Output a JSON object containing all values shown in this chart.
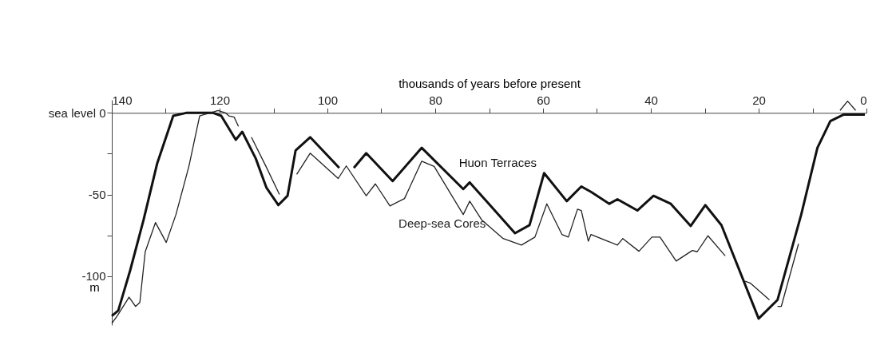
{
  "chart_data": {
    "type": "line",
    "xlabel": "thousands of years before present",
    "ylabel": "m",
    "xlim": [
      140,
      0
    ],
    "ylim": [
      -130,
      8
    ],
    "xticks": [
      140,
      {
        "value": 130,
        "label": null
      },
      120,
      {
        "value": 110,
        "label": null
      },
      100,
      {
        "value": 90,
        "label": null
      },
      80,
      {
        "value": 70,
        "label": null
      },
      60,
      {
        "value": 50,
        "label": null
      },
      40,
      {
        "value": 30,
        "label": null
      },
      20,
      {
        "value": 10,
        "label": null
      },
      0
    ],
    "yticks": [
      {
        "value": 0,
        "label": "sea level 0"
      },
      {
        "value": -25,
        "label": null
      },
      -50,
      {
        "value": -75,
        "label": null
      },
      -100
    ],
    "grid": false,
    "marker": "none",
    "line_style": "solid",
    "series": [
      {
        "name": "Huon Terraces",
        "color": "#111111",
        "x": [
          140.0,
          138.8,
          136.6,
          134.1,
          131.6,
          128.6,
          126.2,
          121.2,
          119.7,
          117.0,
          115.8,
          113.3,
          111.3,
          109.1,
          107.4,
          105.9,
          103.2,
          97.8,
          96.5,
          95.1,
          92.8,
          87.9,
          82.5,
          74.8,
          73.6,
          65.2,
          62.5,
          59.8,
          55.6,
          52.9,
          51.1,
          47.7,
          46.2,
          42.5,
          39.5,
          36.3,
          32.6,
          29.9,
          26.9,
          20.0,
          16.5,
          12.1,
          9.1,
          6.7,
          4.2,
          0.3
        ],
        "values": [
          -124.4,
          -121.1,
          -96.6,
          -65.5,
          -31.2,
          -1.8,
          0,
          0,
          -1.8,
          -16.5,
          -11.6,
          -27.9,
          -45.9,
          -56.5,
          -50.8,
          -23,
          -14.9,
          -33.7,
          null,
          -33.7,
          -24.7,
          -41.8,
          -21.4,
          -46.7,
          -42.6,
          -73.7,
          -68.8,
          -36.9,
          -54.1,
          -45.1,
          -48.4,
          -55.7,
          -52.9,
          -59.8,
          -50.8,
          -55.7,
          -69.3,
          -56.5,
          -68.8,
          -126,
          -114.6,
          -62.3,
          -21.4,
          -5,
          -1,
          -1
        ]
      },
      {
        "name": "Deep-sea Cores",
        "color": "#222222",
        "x": [
          140.0,
          139.0,
          136.8,
          135.6,
          134.8,
          133.8,
          131.9,
          129.9,
          128.1,
          125.7,
          123.7,
          121.7,
          120.3,
          118.9,
          118.3,
          117.3,
          116.5,
          115.3,
          114.1,
          111.4,
          108.9,
          107.3,
          105.7,
          103.2,
          98.0,
          96.5,
          92.8,
          91.1,
          88.4,
          85.7,
          82.5,
          80.2,
          74.8,
          73.6,
          71.4,
          67.4,
          64.0,
          61.5,
          59.3,
          56.5,
          55.3,
          53.6,
          52.9,
          51.6,
          51.1,
          46.2,
          45.2,
          42.2,
          39.8,
          38.3,
          35.3,
          32.3,
          31.4,
          29.4,
          26.2,
          24.3,
          22.5,
          21.5,
          18.0,
          17.2,
          16.5,
          15.8,
          12.6,
          8.0,
          4.9,
          3.5,
          2.0
        ],
        "values": [
          -129,
          -124.4,
          -112.9,
          -118.6,
          -116.2,
          -85.1,
          -67.2,
          -79.4,
          -62.3,
          -32.8,
          -1.8,
          0,
          1.5,
          0,
          -1.8,
          -2.6,
          -8.3,
          null,
          -14.9,
          -32.8,
          -50,
          null,
          -37.7,
          -24.7,
          -40.2,
          -32.5,
          -50.8,
          -43.5,
          -57,
          -52.5,
          -29.6,
          -32.8,
          -62.3,
          -54.1,
          -65.5,
          -77,
          -81,
          -76.1,
          -55.7,
          -74.5,
          -76.1,
          -59,
          -59.8,
          -78.6,
          -74.5,
          -81,
          -77,
          -84.8,
          -76.1,
          -76.1,
          -90.8,
          -84.3,
          -85.1,
          -75.3,
          -87.6,
          null,
          -103.1,
          -104.4,
          -114.6,
          null,
          -118.6,
          -118.6,
          -80.2,
          null,
          1.5,
          7.2,
          1.5
        ]
      }
    ]
  }
}
